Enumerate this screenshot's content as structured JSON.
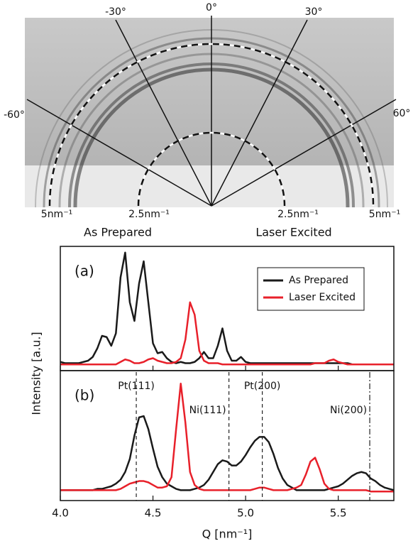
{
  "diffraction": {
    "angles": [
      "-60°",
      "-30°",
      "0°",
      "30°",
      "60°"
    ],
    "radii": [
      "5nm⁻¹",
      "2.5nm⁻¹",
      "2.5nm⁻¹",
      "5nm⁻¹"
    ],
    "halves": [
      "As Prepared",
      "Laser Excited"
    ]
  },
  "chart_data": [
    {
      "type": "line",
      "panel_label": "(a)",
      "ylabel": "Intensity [a.u.]",
      "legend": "upper right",
      "xlim": [
        4.0,
        5.8
      ],
      "ylim": [
        0,
        1
      ],
      "x": [
        4.0,
        4.025,
        4.05,
        4.075,
        4.1,
        4.125,
        4.15,
        4.175,
        4.2,
        4.225,
        4.25,
        4.275,
        4.3,
        4.325,
        4.35,
        4.375,
        4.4,
        4.425,
        4.45,
        4.475,
        4.5,
        4.525,
        4.55,
        4.575,
        4.6,
        4.625,
        4.65,
        4.675,
        4.7,
        4.725,
        4.75,
        4.775,
        4.8,
        4.825,
        4.85,
        4.875,
        4.9,
        4.925,
        4.95,
        4.975,
        5.0,
        5.025,
        5.05,
        5.075,
        5.1,
        5.125,
        5.15,
        5.175,
        5.2,
        5.225,
        5.25,
        5.275,
        5.3,
        5.325,
        5.35,
        5.375,
        5.4,
        5.425,
        5.45,
        5.475,
        5.5,
        5.525,
        5.55,
        5.575,
        5.6,
        5.625,
        5.65,
        5.675,
        5.7,
        5.725,
        5.75,
        5.775,
        5.8
      ],
      "series": [
        {
          "name": "As Prepared",
          "color": "#1a1a1a",
          "values": [
            0.07,
            0.06,
            0.06,
            0.06,
            0.06,
            0.07,
            0.08,
            0.11,
            0.18,
            0.28,
            0.27,
            0.2,
            0.3,
            0.75,
            0.95,
            0.55,
            0.4,
            0.7,
            0.88,
            0.55,
            0.22,
            0.14,
            0.15,
            0.1,
            0.07,
            0.06,
            0.07,
            0.06,
            0.06,
            0.07,
            0.1,
            0.15,
            0.1,
            0.1,
            0.2,
            0.34,
            0.16,
            0.08,
            0.08,
            0.11,
            0.07,
            0.06,
            0.06,
            0.06,
            0.06,
            0.06,
            0.06,
            0.06,
            0.06,
            0.06,
            0.06,
            0.06,
            0.06,
            0.06,
            0.06,
            0.06,
            0.06,
            0.06,
            0.06,
            0.06,
            0.06,
            0.06,
            0.06,
            0.05,
            0.05,
            0.05,
            0.05,
            0.05,
            0.05,
            0.05,
            0.05,
            0.05,
            0.05
          ]
        },
        {
          "name": "Laser Excited",
          "color": "#e8202a",
          "values": [
            0.05,
            0.05,
            0.05,
            0.05,
            0.05,
            0.05,
            0.05,
            0.05,
            0.05,
            0.05,
            0.05,
            0.05,
            0.05,
            0.07,
            0.09,
            0.08,
            0.06,
            0.06,
            0.07,
            0.09,
            0.1,
            0.08,
            0.07,
            0.06,
            0.06,
            0.07,
            0.1,
            0.25,
            0.55,
            0.45,
            0.16,
            0.08,
            0.06,
            0.06,
            0.06,
            0.05,
            0.05,
            0.05,
            0.05,
            0.05,
            0.05,
            0.05,
            0.05,
            0.05,
            0.05,
            0.05,
            0.05,
            0.05,
            0.05,
            0.05,
            0.05,
            0.05,
            0.05,
            0.05,
            0.05,
            0.06,
            0.06,
            0.06,
            0.08,
            0.09,
            0.07,
            0.06,
            0.05,
            0.05,
            0.05,
            0.05,
            0.05,
            0.05,
            0.05,
            0.05,
            0.05,
            0.05,
            0.05
          ]
        }
      ]
    },
    {
      "type": "line",
      "panel_label": "(b)",
      "xlabel": "Q [nm⁻¹]",
      "xlim": [
        4.0,
        5.8
      ],
      "ylim": [
        0,
        1
      ],
      "xticks": [
        {
          "value": 4.0,
          "label": "4.0"
        },
        4.5,
        {
          "value": 5.0,
          "label": "5.0"
        },
        5.5
      ],
      "markers": [
        {
          "label": "Pt(111)",
          "x": 4.41,
          "style": "dashed"
        },
        {
          "label": "Ni(111)",
          "x": 4.91,
          "style": "dashed"
        },
        {
          "label": "Pt(200)",
          "x": 5.09,
          "style": "dashed"
        },
        {
          "label": "Ni(200)",
          "x": 5.67,
          "style": "dashdot"
        }
      ],
      "x": [
        4.0,
        4.025,
        4.05,
        4.075,
        4.1,
        4.125,
        4.15,
        4.175,
        4.2,
        4.225,
        4.25,
        4.275,
        4.3,
        4.325,
        4.35,
        4.375,
        4.4,
        4.425,
        4.45,
        4.475,
        4.5,
        4.525,
        4.55,
        4.575,
        4.6,
        4.625,
        4.65,
        4.675,
        4.7,
        4.725,
        4.75,
        4.775,
        4.8,
        4.825,
        4.85,
        4.875,
        4.9,
        4.925,
        4.95,
        4.975,
        5.0,
        5.025,
        5.05,
        5.075,
        5.1,
        5.125,
        5.15,
        5.175,
        5.2,
        5.225,
        5.25,
        5.275,
        5.3,
        5.325,
        5.35,
        5.375,
        5.4,
        5.425,
        5.45,
        5.475,
        5.5,
        5.525,
        5.55,
        5.575,
        5.6,
        5.625,
        5.65,
        5.675,
        5.7,
        5.725,
        5.75,
        5.775,
        5.8
      ],
      "series": [
        {
          "color": "#1a1a1a",
          "values": [
            0.08,
            0.08,
            0.08,
            0.08,
            0.08,
            0.08,
            0.08,
            0.08,
            0.09,
            0.09,
            0.1,
            0.11,
            0.13,
            0.16,
            0.22,
            0.32,
            0.5,
            0.64,
            0.65,
            0.55,
            0.4,
            0.26,
            0.18,
            0.13,
            0.11,
            0.09,
            0.08,
            0.08,
            0.08,
            0.09,
            0.1,
            0.12,
            0.16,
            0.22,
            0.28,
            0.31,
            0.3,
            0.27,
            0.27,
            0.3,
            0.35,
            0.41,
            0.46,
            0.49,
            0.49,
            0.45,
            0.36,
            0.25,
            0.17,
            0.12,
            0.1,
            0.08,
            0.08,
            0.08,
            0.08,
            0.08,
            0.08,
            0.08,
            0.09,
            0.1,
            0.11,
            0.13,
            0.16,
            0.19,
            0.21,
            0.22,
            0.21,
            0.17,
            0.15,
            0.12,
            0.1,
            0.09,
            0.08
          ]
        },
        {
          "color": "#e8202a",
          "values": [
            0.08,
            0.08,
            0.08,
            0.08,
            0.08,
            0.08,
            0.08,
            0.08,
            0.08,
            0.08,
            0.08,
            0.08,
            0.08,
            0.09,
            0.11,
            0.13,
            0.14,
            0.15,
            0.15,
            0.14,
            0.12,
            0.1,
            0.1,
            0.11,
            0.18,
            0.55,
            0.9,
            0.6,
            0.22,
            0.12,
            0.09,
            0.08,
            0.08,
            0.08,
            0.08,
            0.08,
            0.08,
            0.08,
            0.08,
            0.08,
            0.08,
            0.08,
            0.09,
            0.1,
            0.1,
            0.09,
            0.08,
            0.08,
            0.08,
            0.08,
            0.09,
            0.1,
            0.12,
            0.2,
            0.3,
            0.33,
            0.24,
            0.13,
            0.09,
            0.08,
            0.08,
            0.08,
            0.08,
            0.08,
            0.08,
            0.08,
            0.08,
            0.07,
            0.07,
            0.07,
            0.07,
            0.07,
            0.07
          ]
        }
      ]
    }
  ]
}
